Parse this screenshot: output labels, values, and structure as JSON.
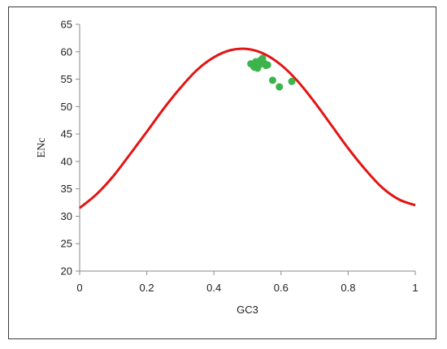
{
  "chart_data": {
    "type": "scatter",
    "title": "",
    "xlabel": "GC3",
    "ylabel": "ENc",
    "xlim": [
      0,
      1
    ],
    "ylim": [
      20,
      65
    ],
    "x_ticks": [
      "0",
      "0.2",
      "0.4",
      "0.6",
      "0.8",
      "1"
    ],
    "y_ticks": [
      "20",
      "25",
      "30",
      "35",
      "40",
      "45",
      "50",
      "55",
      "60",
      "65"
    ],
    "grid": false,
    "legend": "none",
    "series": [
      {
        "kind": "line",
        "color": "#e31414",
        "x": [
          0.0,
          0.05,
          0.1,
          0.15,
          0.2,
          0.25,
          0.3,
          0.35,
          0.4,
          0.45,
          0.5,
          0.55,
          0.6,
          0.65,
          0.7,
          0.75,
          0.8,
          0.85,
          0.9,
          0.95,
          1.0
        ],
        "y": [
          31.5,
          34.0,
          37.3,
          41.3,
          45.4,
          49.6,
          53.4,
          56.7,
          59.0,
          60.3,
          60.5,
          59.6,
          57.6,
          54.6,
          50.8,
          46.6,
          42.4,
          38.6,
          35.3,
          33.1,
          32.0
        ]
      },
      {
        "kind": "scatter",
        "color": "#3cb44b",
        "x": [
          0.51,
          0.52,
          0.525,
          0.53,
          0.535,
          0.54,
          0.545,
          0.55,
          0.555,
          0.56,
          0.575,
          0.595,
          0.632
        ],
        "y": [
          57.8,
          57.2,
          58.2,
          57.0,
          57.6,
          58.5,
          58.8,
          57.9,
          57.5,
          57.6,
          54.8,
          53.6,
          54.6
        ]
      }
    ]
  }
}
